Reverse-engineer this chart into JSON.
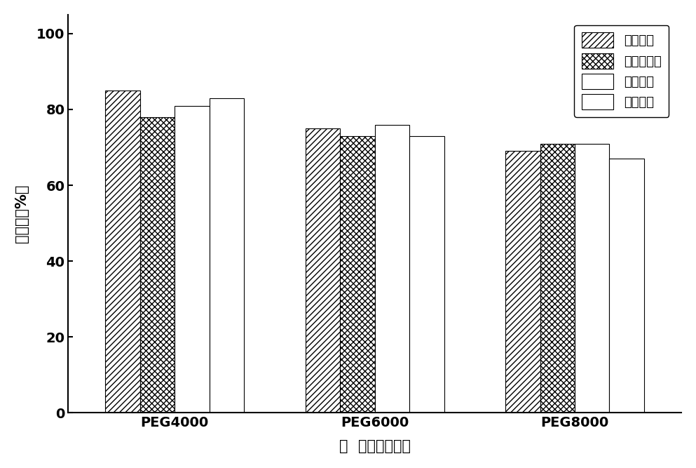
{
  "categories": [
    "PEG4000",
    "PEG6000",
    "PEG8000"
  ],
  "series": [
    {
      "name": "克伦特罗",
      "values": [
        85,
        75,
        69
      ],
      "hatch": "////"
    },
    {
      "name": "莱克多巴胺",
      "values": [
        78,
        73,
        71
      ],
      "hatch": "xxxx"
    },
    {
      "name": "沙丁胺醇",
      "values": [
        81,
        76,
        71
      ],
      "hatch": ""
    },
    {
      "name": "特布他林",
      "values": [
        83,
        73,
        67
      ],
      "hatch": "===="
    }
  ],
  "ylabel": "回收率（%）",
  "xlabel": "表  面活性剂种类",
  "ylim": [
    0,
    105
  ],
  "yticks": [
    0,
    20,
    40,
    60,
    80,
    100
  ],
  "bar_width": 0.13,
  "group_centers": [
    0.35,
    1.1,
    1.85
  ],
  "facecolor": "white",
  "edgecolor": "black",
  "label_fontsize": 15,
  "tick_fontsize": 14,
  "legend_fontsize": 13,
  "hatch_linewidth": 1.0
}
